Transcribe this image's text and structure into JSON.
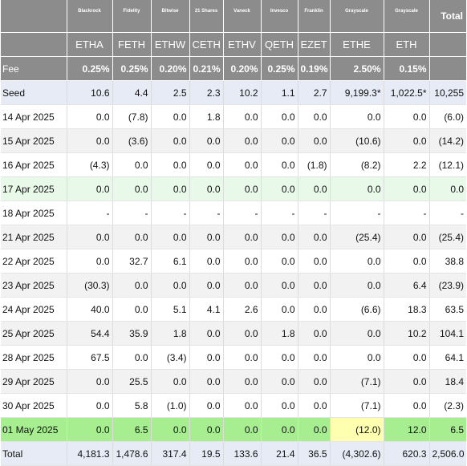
{
  "table": {
    "issuers": [
      "Blackrock",
      "Fidelity",
      "Bitwise",
      "21 Shares",
      "Vaneck",
      "Invesco",
      "Franklin",
      "Grayscale",
      "Grayscale"
    ],
    "total_label": "Total",
    "tickers": [
      "ETHA",
      "FETH",
      "ETHW",
      "CETH",
      "ETHV",
      "QETH",
      "EZET",
      "ETHE",
      "ETH"
    ],
    "fee_label": "Fee",
    "fees": [
      "0.25%",
      "0.25%",
      "0.20%",
      "0.21%",
      "0.20%",
      "0.25%",
      "0.19%",
      "2.50%",
      "0.15%"
    ],
    "rows": [
      {
        "date": "Seed",
        "values": [
          "10.6",
          "4.4",
          "2.5",
          "2.3",
          "10.2",
          "1.1",
          "2.7",
          "9,199.3*",
          "1,022.5*"
        ],
        "total": "10,255"
      },
      {
        "date": "14 Apr 2025",
        "values": [
          "0.0",
          "(7.8)",
          "0.0",
          "1.8",
          "0.0",
          "0.0",
          "0.0",
          "0.0",
          "0.0"
        ],
        "total": "(6.0)"
      },
      {
        "date": "15 Apr 2025",
        "values": [
          "0.0",
          "(3.6)",
          "0.0",
          "0.0",
          "0.0",
          "0.0",
          "0.0",
          "(10.6)",
          "0.0"
        ],
        "total": "(14.2)"
      },
      {
        "date": "16 Apr 2025",
        "values": [
          "(4.3)",
          "0.0",
          "0.0",
          "0.0",
          "0.0",
          "0.0",
          "(1.8)",
          "(8.2)",
          "2.2"
        ],
        "total": "(12.1)"
      },
      {
        "date": "17 Apr 2025",
        "values": [
          "0.0",
          "0.0",
          "0.0",
          "0.0",
          "0.0",
          "0.0",
          "0.0",
          "0.0",
          "0.0"
        ],
        "total": "0.0"
      },
      {
        "date": "18 Apr 2025",
        "values": [
          "-",
          "-",
          "-",
          "-",
          "-",
          "-",
          "-",
          "-",
          "-"
        ],
        "total": "-"
      },
      {
        "date": "21 Apr 2025",
        "values": [
          "0.0",
          "0.0",
          "0.0",
          "0.0",
          "0.0",
          "0.0",
          "0.0",
          "(25.4)",
          "0.0"
        ],
        "total": "(25.4)"
      },
      {
        "date": "22 Apr 2025",
        "values": [
          "0.0",
          "32.7",
          "6.1",
          "0.0",
          "0.0",
          "0.0",
          "0.0",
          "0.0",
          "0.0"
        ],
        "total": "38.8"
      },
      {
        "date": "23 Apr 2025",
        "values": [
          "(30.3)",
          "0.0",
          "0.0",
          "0.0",
          "0.0",
          "0.0",
          "0.0",
          "0.0",
          "6.4"
        ],
        "total": "(23.9)"
      },
      {
        "date": "24 Apr 2025",
        "values": [
          "40.0",
          "0.0",
          "5.1",
          "4.1",
          "2.6",
          "0.0",
          "0.0",
          "(6.6)",
          "18.3"
        ],
        "total": "63.5"
      },
      {
        "date": "25 Apr 2025",
        "values": [
          "54.4",
          "35.9",
          "1.8",
          "0.0",
          "0.0",
          "1.8",
          "0.0",
          "0.0",
          "10.2"
        ],
        "total": "104.1"
      },
      {
        "date": "28 Apr 2025",
        "values": [
          "67.5",
          "0.0",
          "(3.4)",
          "0.0",
          "0.0",
          "0.0",
          "0.0",
          "0.0",
          "0.0"
        ],
        "total": "64.1"
      },
      {
        "date": "29 Apr 2025",
        "values": [
          "0.0",
          "25.5",
          "0.0",
          "0.0",
          "0.0",
          "0.0",
          "0.0",
          "(7.1)",
          "0.0"
        ],
        "total": "18.4"
      },
      {
        "date": "30 Apr 2025",
        "values": [
          "0.0",
          "5.8",
          "(1.0)",
          "0.0",
          "0.0",
          "0.0",
          "0.0",
          "(7.1)",
          "0.0"
        ],
        "total": "(2.3)"
      },
      {
        "date": "01 May 2025",
        "values": [
          "0.0",
          "6.5",
          "0.0",
          "0.0",
          "0.0",
          "0.0",
          "0.0",
          "(12.0)",
          "12.0"
        ],
        "total": "6.5"
      }
    ],
    "total_row": {
      "date": "Total",
      "values": [
        "4,181.3",
        "1,478.6",
        "317.4",
        "19.5",
        "133.6",
        "21.4",
        "36.5",
        "(4,302.6)",
        "620.3"
      ],
      "total": "2,506.0"
    }
  },
  "colors": {
    "header_bg": "#8c8c8c",
    "seed_total_bg": "#e6ebf5",
    "alt_row_bg": "#f2f2f2",
    "friday_bg": "#e9f9e9",
    "latest_bg": "#a6ee8f",
    "highlight_bg": "#ffffb0",
    "negative_text": "#b22222"
  }
}
